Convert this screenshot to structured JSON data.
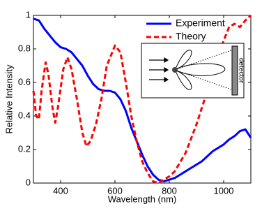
{
  "chart_data": {
    "type": "line",
    "xlabel": "Wavelength (nm)",
    "ylabel": "Relative Intensity",
    "xlim": [
      300,
      1100
    ],
    "xticks": [
      400,
      600,
      800,
      1000
    ],
    "ylim": [
      0,
      1
    ],
    "yticks": [
      0,
      0.2,
      0.4,
      0.6,
      0.8,
      1
    ],
    "legend": "upper right",
    "inset_label": "detector",
    "series": [
      {
        "name": "Experiment",
        "color": "#0000ff",
        "dash": "solid",
        "x": [
          300,
          320,
          340,
          360,
          380,
          400,
          420,
          440,
          460,
          480,
          500,
          520,
          540,
          560,
          580,
          600,
          620,
          640,
          660,
          680,
          700,
          720,
          740,
          760,
          780,
          800,
          820,
          840,
          860,
          880,
          900,
          920,
          940,
          960,
          980,
          1000,
          1020,
          1040,
          1060,
          1080,
          1100
        ],
        "values": [
          0.98,
          0.97,
          0.92,
          0.88,
          0.84,
          0.81,
          0.8,
          0.78,
          0.74,
          0.7,
          0.64,
          0.59,
          0.56,
          0.55,
          0.55,
          0.54,
          0.5,
          0.43,
          0.33,
          0.25,
          0.17,
          0.1,
          0.05,
          0.02,
          0.01,
          0.02,
          0.03,
          0.05,
          0.07,
          0.09,
          0.11,
          0.13,
          0.16,
          0.19,
          0.21,
          0.23,
          0.26,
          0.28,
          0.31,
          0.32,
          0.27
        ]
      },
      {
        "name": "Theory",
        "color": "#ff0000",
        "dash": "dashed",
        "x": [
          300,
          310,
          320,
          330,
          345,
          355,
          370,
          380,
          390,
          410,
          425,
          440,
          460,
          480,
          495,
          510,
          530,
          550,
          570,
          590,
          600,
          620,
          640,
          660,
          680,
          700,
          720,
          740,
          760,
          780,
          800,
          820,
          860,
          900,
          940,
          980,
          1000,
          1020,
          1040,
          1060,
          1080,
          1100
        ],
        "values": [
          0.55,
          0.4,
          0.38,
          0.55,
          0.72,
          0.65,
          0.45,
          0.36,
          0.45,
          0.68,
          0.75,
          0.68,
          0.5,
          0.3,
          0.22,
          0.25,
          0.35,
          0.5,
          0.7,
          0.78,
          0.82,
          0.78,
          0.6,
          0.4,
          0.25,
          0.13,
          0.06,
          0.01,
          0,
          0.02,
          0.04,
          0.07,
          0.18,
          0.35,
          0.55,
          0.75,
          0.85,
          0.93,
          0.95,
          0.93,
          0.97,
          1
        ]
      }
    ]
  }
}
